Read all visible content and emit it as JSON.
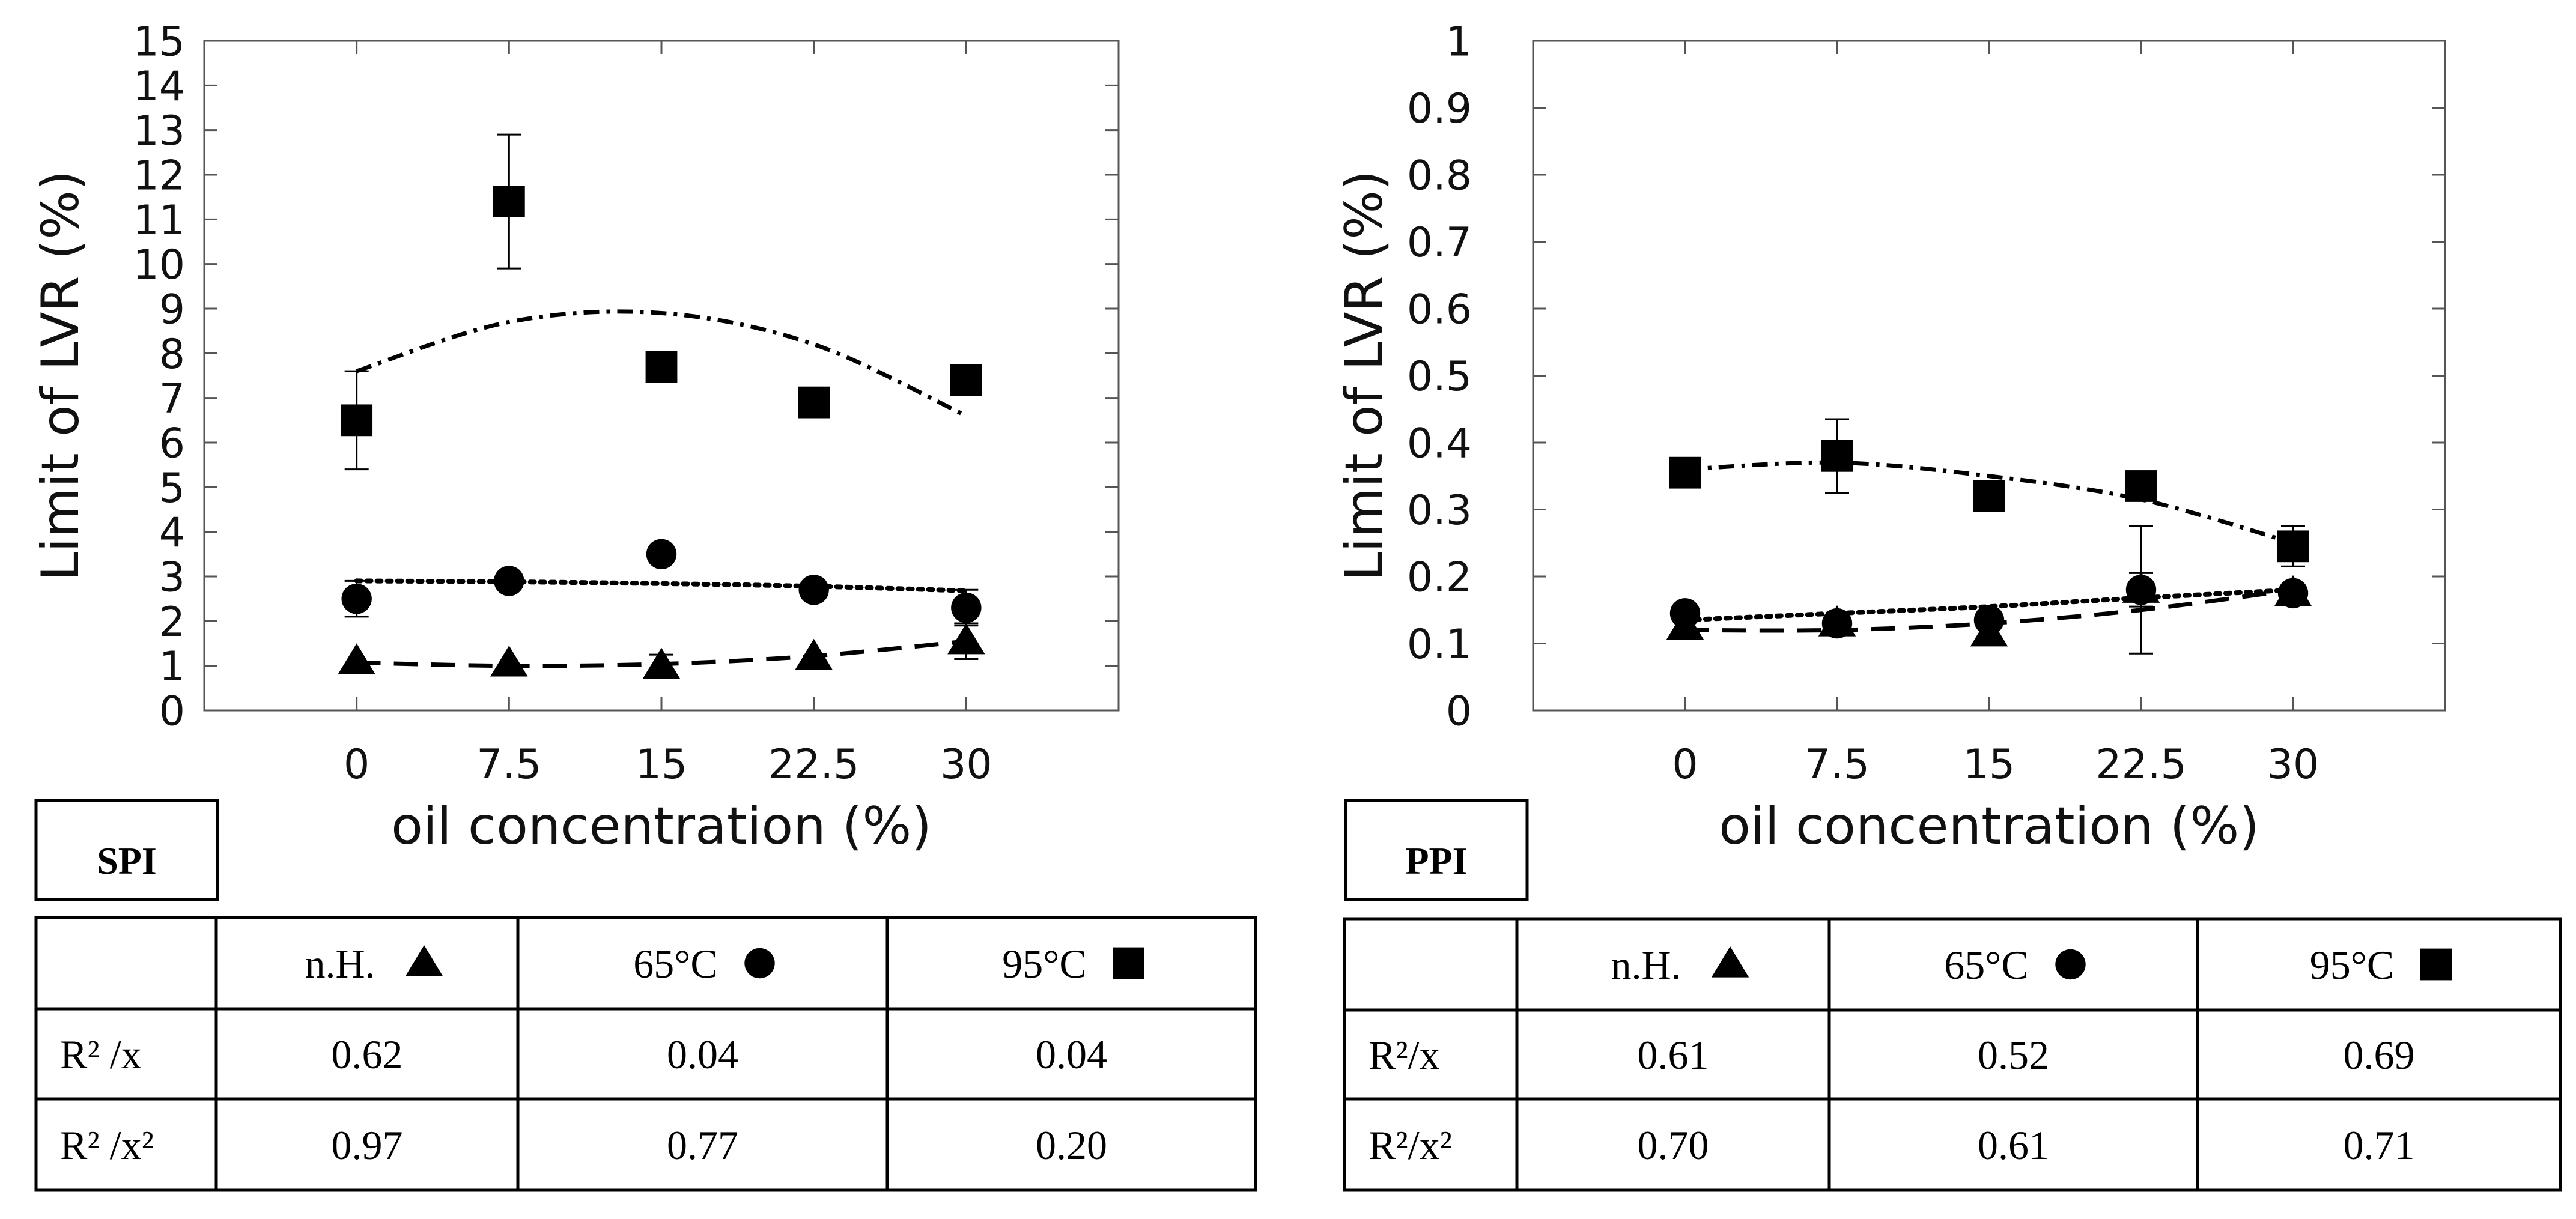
{
  "chart_data": [
    {
      "type": "scatter",
      "panel_label": "SPI",
      "ylabel": "Limit of LVR (%)",
      "xlabel": "oil concentration (%)",
      "xlim": [
        -7.5,
        37.5
      ],
      "ylim": [
        0,
        15
      ],
      "x_ticks": [
        0,
        7.5,
        15,
        22.5,
        30
      ],
      "x_tick_labels": [
        "0",
        "7.5",
        "15",
        "22.5",
        "30"
      ],
      "y_ticks": [
        0,
        1,
        2,
        3,
        4,
        5,
        6,
        7,
        8,
        9,
        10,
        11,
        12,
        13,
        14,
        15
      ],
      "y_tick_labels": [
        "0",
        "1",
        "2",
        "3",
        "4",
        "5",
        "6",
        "7",
        "8",
        "9",
        "10",
        "11",
        "12",
        "13",
        "14",
        "15"
      ],
      "series": [
        {
          "name": "n.H.",
          "marker": "triangle",
          "line": "dashed",
          "x": [
            0,
            7.5,
            15,
            22.5,
            30
          ],
          "y": [
            1.1,
            1.05,
            1.0,
            1.2,
            1.55
          ],
          "yerr": [
            0,
            0,
            0.25,
            0,
            0.4
          ],
          "fit": [
            1.07,
            1.0,
            1.04,
            1.22,
            1.55
          ]
        },
        {
          "name": "65°C",
          "marker": "circle",
          "line": "dotted",
          "x": [
            0,
            7.5,
            15,
            22.5,
            30
          ],
          "y": [
            2.5,
            2.9,
            3.5,
            2.7,
            2.3
          ],
          "yerr": [
            0.4,
            0,
            0,
            0,
            0.4
          ],
          "fit": [
            2.9,
            2.88,
            2.84,
            2.78,
            2.68
          ]
        },
        {
          "name": "95°C",
          "marker": "square",
          "line": "dashdot",
          "x": [
            0,
            7.5,
            15,
            22.5,
            30
          ],
          "y": [
            6.5,
            11.4,
            7.7,
            6.9,
            7.4
          ],
          "yerr": [
            1.1,
            1.5,
            0,
            0,
            0
          ],
          "fit": [
            7.6,
            8.7,
            8.9,
            8.2,
            6.6
          ]
        }
      ],
      "table": {
        "headers": [
          "",
          "n.H.",
          "65°C",
          "95°C"
        ],
        "rows": [
          {
            "label": "R² /x",
            "values": [
              "0.62",
              "0.04",
              "0.04"
            ]
          },
          {
            "label": "R² /x²",
            "values": [
              "0.97",
              "0.77",
              "0.20"
            ]
          }
        ]
      }
    },
    {
      "type": "scatter",
      "panel_label": "PPI",
      "ylabel": "Limit of LVR (%)",
      "xlabel": "oil concentration (%)",
      "xlim": [
        -7.5,
        37.5
      ],
      "ylim": [
        0,
        1
      ],
      "x_ticks": [
        0,
        7.5,
        15,
        22.5,
        30
      ],
      "x_tick_labels": [
        "0",
        "7.5",
        "15",
        "22.5",
        "30"
      ],
      "y_ticks": [
        0,
        0.1,
        0.2,
        0.3,
        0.4,
        0.5,
        0.6,
        0.7,
        0.8,
        0.9,
        1
      ],
      "y_tick_labels": [
        "0",
        "0.1",
        "0.2",
        "0.3",
        "0.4",
        "0.5",
        "0.6",
        "0.7",
        "0.8",
        "0.9",
        "1"
      ],
      "series": [
        {
          "name": "n.H.",
          "marker": "triangle",
          "line": "dashed",
          "x": [
            0,
            7.5,
            15,
            22.5,
            30
          ],
          "y": [
            0.125,
            0.13,
            0.115,
            0.18,
            0.175
          ],
          "yerr": [
            0,
            0,
            0,
            0.095,
            0
          ],
          "fit": [
            0.12,
            0.12,
            0.13,
            0.15,
            0.18
          ]
        },
        {
          "name": "65°C",
          "marker": "circle",
          "line": "dotted",
          "x": [
            0,
            7.5,
            15,
            22.5,
            30
          ],
          "y": [
            0.145,
            0.13,
            0.135,
            0.18,
            0.175
          ],
          "yerr": [
            0,
            0,
            0,
            0.025,
            0
          ],
          "fit": [
            0.135,
            0.145,
            0.155,
            0.168,
            0.18
          ]
        },
        {
          "name": "95°C",
          "marker": "square",
          "line": "dashdot",
          "x": [
            0,
            7.5,
            15,
            22.5,
            30
          ],
          "y": [
            0.355,
            0.38,
            0.32,
            0.335,
            0.245
          ],
          "yerr": [
            0,
            0.055,
            0.02,
            0,
            0.03
          ],
          "fit": [
            0.36,
            0.37,
            0.35,
            0.315,
            0.25
          ]
        }
      ],
      "table": {
        "headers": [
          "",
          "n.H.",
          "65°C",
          "95°C"
        ],
        "rows": [
          {
            "label": "R²/x",
            "values": [
              "0.61",
              "0.52",
              "0.69"
            ]
          },
          {
            "label": "R²/x²",
            "values": [
              "0.70",
              "0.61",
              "0.71"
            ]
          }
        ]
      }
    }
  ]
}
